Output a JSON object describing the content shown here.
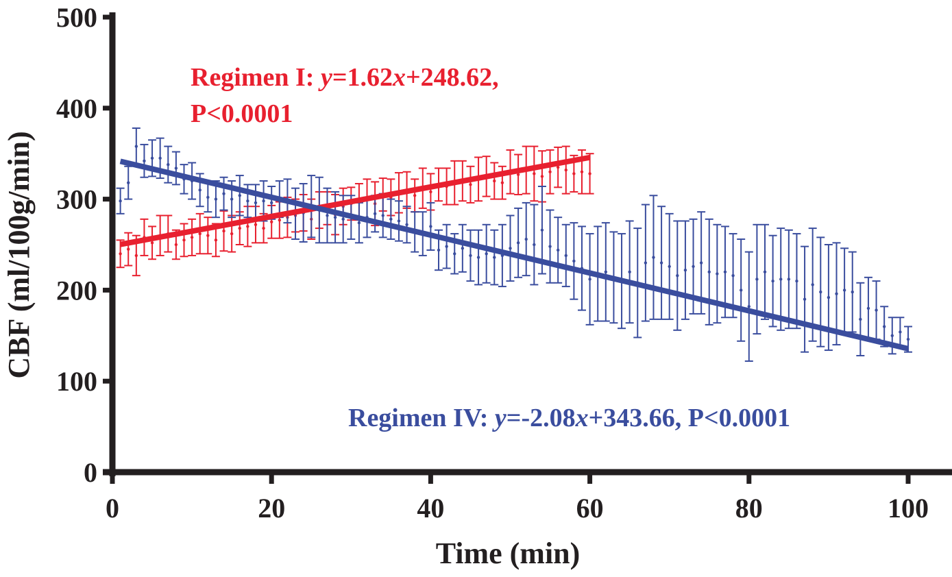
{
  "chart_data": {
    "type": "scatter",
    "title": "",
    "xlabel": "Time (min)",
    "ylabel": "CBF (ml/100g/min)",
    "xlim": [
      0,
      100
    ],
    "ylim": [
      0,
      500
    ],
    "xticks": [
      0,
      20,
      40,
      60,
      80,
      100
    ],
    "xtick_labels": [
      "0",
      "20",
      "40",
      "60",
      "80",
      "100"
    ],
    "yticks": [
      0,
      100,
      200,
      300,
      400,
      500
    ],
    "ytick_labels": [
      "0",
      "100",
      "200",
      "300",
      "400",
      "500"
    ],
    "grid": false,
    "series": [
      {
        "name": "Regimen I",
        "color": "#e8202f",
        "x": [
          1,
          2,
          3,
          4,
          5,
          6,
          7,
          8,
          9,
          10,
          11,
          12,
          13,
          14,
          15,
          16,
          17,
          18,
          19,
          20,
          21,
          22,
          23,
          24,
          25,
          26,
          27,
          28,
          29,
          30,
          31,
          32,
          33,
          34,
          35,
          36,
          37,
          38,
          39,
          40,
          41,
          42,
          43,
          44,
          45,
          46,
          47,
          48,
          49,
          50,
          51,
          52,
          53,
          54,
          55,
          56,
          57,
          58,
          59,
          60
        ],
        "y": [
          240,
          245,
          238,
          258,
          252,
          260,
          262,
          250,
          255,
          258,
          262,
          260,
          255,
          265,
          262,
          268,
          270,
          272,
          268,
          275,
          277,
          280,
          282,
          285,
          278,
          288,
          290,
          283,
          292,
          295,
          297,
          300,
          295,
          305,
          302,
          307,
          310,
          304,
          312,
          308,
          316,
          314,
          318,
          320,
          316,
          322,
          325,
          320,
          318,
          330,
          327,
          332,
          328,
          325,
          330,
          335,
          332,
          328,
          330,
          328
        ],
        "err": [
          15,
          18,
          22,
          20,
          18,
          22,
          20,
          16,
          18,
          20,
          22,
          20,
          18,
          22,
          20,
          18,
          22,
          20,
          16,
          18,
          20,
          22,
          18,
          20,
          22,
          20,
          18,
          22,
          20,
          18,
          20,
          22,
          24,
          18,
          20,
          22,
          20,
          18,
          22,
          20,
          18,
          20,
          24,
          22,
          20,
          24,
          22,
          20,
          18,
          24,
          22,
          26,
          30,
          28,
          24,
          22,
          26,
          20,
          24,
          22
        ],
        "trend": {
          "slope": 1.62,
          "intercept": 248.62,
          "x_start": 1,
          "x_end": 60
        }
      },
      {
        "name": "Regimen IV",
        "color": "#3a4d9e",
        "x": [
          1,
          2,
          3,
          4,
          5,
          6,
          7,
          8,
          9,
          10,
          11,
          12,
          13,
          14,
          15,
          16,
          17,
          18,
          19,
          20,
          21,
          22,
          23,
          24,
          25,
          26,
          27,
          28,
          29,
          30,
          31,
          32,
          33,
          34,
          35,
          36,
          37,
          38,
          39,
          40,
          41,
          42,
          43,
          44,
          45,
          46,
          47,
          48,
          49,
          50,
          51,
          52,
          53,
          54,
          55,
          56,
          57,
          58,
          59,
          60,
          61,
          62,
          63,
          64,
          65,
          66,
          67,
          68,
          69,
          70,
          71,
          72,
          73,
          74,
          75,
          76,
          77,
          78,
          79,
          80,
          81,
          82,
          83,
          84,
          85,
          86,
          87,
          88,
          89,
          90,
          91,
          92,
          93,
          94,
          95,
          96,
          97,
          98,
          99,
          100
        ],
        "y": [
          298,
          318,
          358,
          342,
          345,
          345,
          338,
          334,
          322,
          320,
          310,
          302,
          300,
          306,
          300,
          304,
          298,
          296,
          298,
          296,
          300,
          298,
          284,
          285,
          292,
          288,
          282,
          280,
          278,
          280,
          274,
          280,
          284,
          282,
          278,
          276,
          272,
          264,
          262,
          270,
          244,
          248,
          240,
          246,
          238,
          236,
          240,
          236,
          238,
          246,
          252,
          256,
          250,
          266,
          248,
          244,
          238,
          232,
          224,
          212,
          218,
          220,
          214,
          210,
          220,
          208,
          230,
          236,
          230,
          226,
          216,
          222,
          226,
          230,
          220,
          218,
          220,
          216,
          200,
          182,
          212,
          220,
          210,
          212,
          212,
          210,
          190,
          206,
          198,
          192,
          196,
          200,
          198,
          168,
          180,
          178,
          160,
          150,
          154,
          146
        ],
        "err": [
          14,
          18,
          20,
          18,
          20,
          22,
          20,
          18,
          16,
          20,
          18,
          16,
          20,
          18,
          20,
          22,
          18,
          20,
          22,
          18,
          20,
          24,
          28,
          32,
          34,
          36,
          30,
          28,
          26,
          24,
          22,
          22,
          20,
          24,
          22,
          22,
          20,
          22,
          24,
          26,
          22,
          24,
          22,
          26,
          28,
          30,
          32,
          30,
          34,
          36,
          38,
          40,
          44,
          48,
          40,
          36,
          34,
          42,
          46,
          50,
          52,
          54,
          50,
          52,
          56,
          60,
          64,
          68,
          62,
          58,
          60,
          54,
          52,
          56,
          58,
          54,
          50,
          46,
          56,
          60,
          60,
          52,
          50,
          56,
          54,
          52,
          58,
          62,
          60,
          58,
          56,
          46,
          44,
          40,
          34,
          32,
          22,
          20,
          16,
          14
        ],
        "trend": {
          "slope": -2.08,
          "intercept": 343.66,
          "x_start": 1,
          "x_end": 100
        }
      }
    ],
    "annotations": {
      "regimen_i_line1_prefix": "Regimen I: ",
      "regimen_i_y": "y",
      "regimen_i_eq_mid": "=1.62",
      "regimen_i_x": "x",
      "regimen_i_eq_end": "+248.62,",
      "regimen_i_line2": "P<0.0001",
      "regimen_iv_prefix": "Regimen IV: ",
      "regimen_iv_y": "y",
      "regimen_iv_eq_mid": "=-2.08",
      "regimen_iv_x": "x",
      "regimen_iv_eq_end": "+343.66, P<0.0001"
    }
  }
}
